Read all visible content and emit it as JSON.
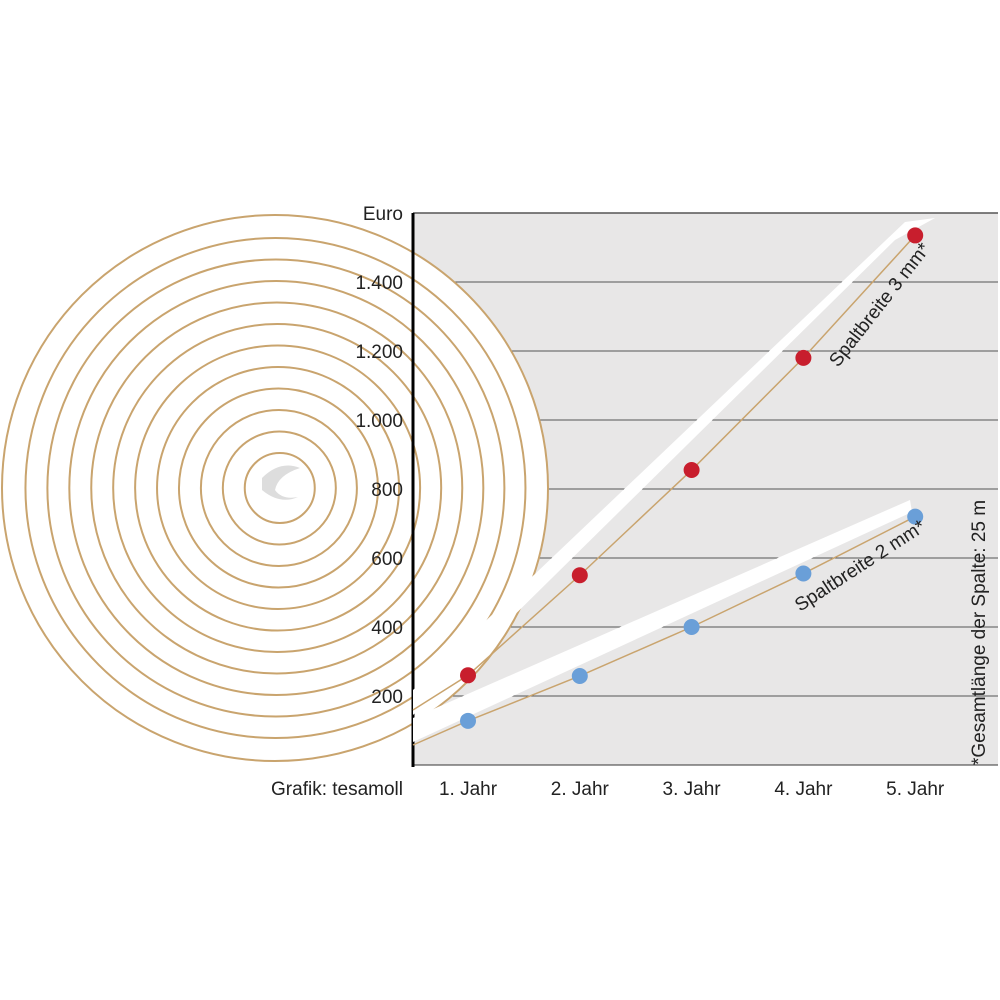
{
  "chart_data": {
    "type": "line",
    "ylabel": "Euro",
    "ylim": [
      0,
      1600
    ],
    "yticks": [
      200,
      400,
      600,
      800,
      1000,
      1200,
      1400
    ],
    "ytick_labels": [
      "200",
      "400",
      "600",
      "800",
      "1.000",
      "1.200",
      "1.400"
    ],
    "categories": [
      "1. Jahr",
      "2. Jahr",
      "3. Jahr",
      "4. Jahr",
      "5. Jahr"
    ],
    "grid": true,
    "series": [
      {
        "name": "Spaltbreite 3 mm*",
        "color": "#c81e2d",
        "values": [
          260,
          550,
          855,
          1180,
          1535
        ]
      },
      {
        "name": "Spaltbreite 2 mm*",
        "color": "#6a9fd8",
        "values": [
          128,
          258,
          400,
          555,
          720
        ]
      }
    ],
    "footnote": "*Gesamtlänge der Spalte: 25 m",
    "credit": "Grafik: tesamoll",
    "colors": {
      "plot_background": "#e8e7e7",
      "spiral": "#c9a46e",
      "grid": "#555555"
    }
  }
}
